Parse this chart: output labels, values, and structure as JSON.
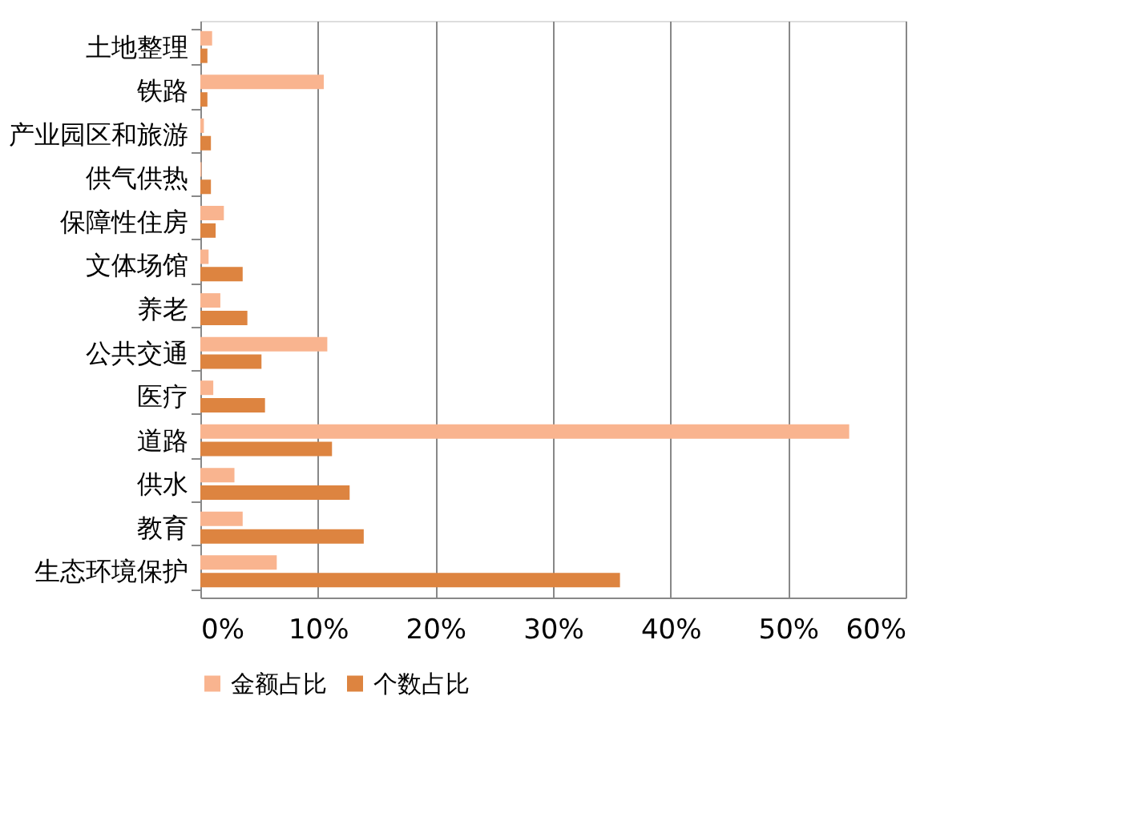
{
  "chart_data": {
    "type": "bar",
    "orientation": "horizontal",
    "categories": [
      "土地整理",
      "铁路",
      "产业园区和旅游",
      "供气供热",
      "保障性住房",
      "文体场馆",
      "养老",
      "公共交通",
      "医疗",
      "道路",
      "供水",
      "教育",
      "生态环境保护"
    ],
    "series": [
      {
        "name": "金额占比",
        "color": "#f9b48f",
        "values": [
          1.0,
          10.5,
          0.3,
          0.1,
          2.0,
          0.7,
          1.7,
          10.8,
          1.1,
          55.2,
          2.9,
          3.6,
          6.5
        ]
      },
      {
        "name": "个数占比",
        "color": "#dd8440",
        "values": [
          0.6,
          0.6,
          0.9,
          0.9,
          1.3,
          3.6,
          4.0,
          5.2,
          5.5,
          11.2,
          12.7,
          13.9,
          35.7
        ]
      }
    ],
    "xlim": [
      0,
      60
    ],
    "xticks": [
      {
        "value": 0,
        "label": "0%"
      },
      {
        "value": 10,
        "label": "10%"
      },
      {
        "value": 20,
        "label": "20%"
      },
      {
        "value": 30,
        "label": "30%"
      },
      {
        "value": 40,
        "label": "40%"
      },
      {
        "value": 50,
        "label": "50%"
      },
      {
        "value": 60,
        "label": "60%"
      }
    ],
    "grid": "x",
    "legend": "bottom"
  }
}
